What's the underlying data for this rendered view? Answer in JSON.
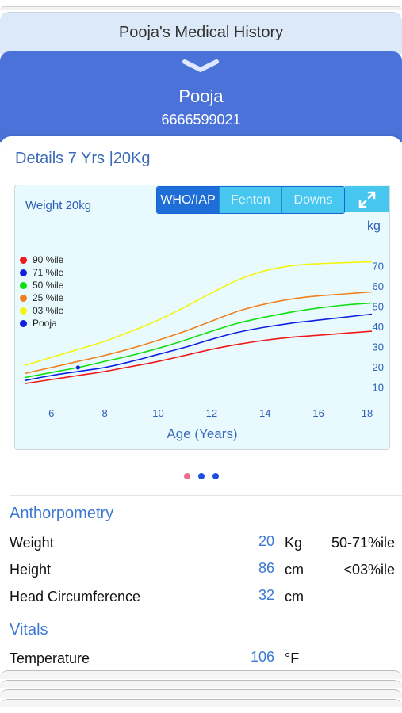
{
  "header": {
    "title": "Pooja's Medical History"
  },
  "patient": {
    "name": "Pooja",
    "phone": "6666599021"
  },
  "details": {
    "text": "Details 7 Yrs  |20Kg"
  },
  "chart": {
    "weight_label": "Weight 20kg",
    "segments": [
      "WHO/IAP",
      "Fenton",
      "Downs"
    ],
    "active_segment": "WHO/IAP",
    "unit": "kg",
    "x_axis_title": "Age (Years)",
    "legend": [
      {
        "label": "90 %ile",
        "color": "#f01818"
      },
      {
        "label": "71 %ile",
        "color": "#1020e0"
      },
      {
        "label": "50 %ile",
        "color": "#10e010"
      },
      {
        "label": "25 %ile",
        "color": "#f08020"
      },
      {
        "label": "03 %ile",
        "color": "#f4f410"
      },
      {
        "label": "Pooja",
        "color": "#1020e0"
      }
    ]
  },
  "chart_data": {
    "type": "line",
    "xlabel": "Age (Years)",
    "ylabel": "kg",
    "title": "Weight 20kg",
    "xlim": [
      5,
      18
    ],
    "ylim": [
      5,
      75
    ],
    "x_ticks": [
      6,
      8,
      10,
      12,
      14,
      16,
      18
    ],
    "y_ticks": [
      10,
      20,
      30,
      40,
      50,
      60,
      70
    ],
    "x": [
      5,
      6,
      7,
      8,
      9,
      10,
      11,
      12,
      13,
      14,
      15,
      16,
      17,
      18
    ],
    "series": [
      {
        "name": "90 %ile",
        "color": "#f01818",
        "values": [
          12,
          14,
          16,
          18,
          20.5,
          23,
          26,
          29,
          31.5,
          33.5,
          35,
          36,
          37,
          38
        ]
      },
      {
        "name": "71 %ile",
        "color": "#1020e0",
        "values": [
          13.5,
          16,
          18,
          20,
          23,
          26.5,
          30,
          34,
          37.5,
          40,
          42,
          43.5,
          45,
          46.5
        ]
      },
      {
        "name": "50 %ile",
        "color": "#10e010",
        "values": [
          15,
          17.5,
          20,
          23,
          26,
          29.5,
          33.5,
          38,
          42,
          45,
          47.5,
          49.5,
          51,
          52
        ]
      },
      {
        "name": "25 %ile",
        "color": "#f08020",
        "values": [
          17,
          20,
          23,
          26,
          29.5,
          33.5,
          38,
          43,
          48,
          51.5,
          54,
          55.5,
          56.5,
          57.5
        ]
      },
      {
        "name": "03 %ile",
        "color": "#f4f410",
        "values": [
          21,
          25,
          29,
          33,
          38,
          43.5,
          50,
          57,
          63.5,
          68,
          70.5,
          71.5,
          72,
          72.5
        ]
      }
    ],
    "points": [
      {
        "name": "Pooja",
        "x": 7,
        "y": 20,
        "color": "#1020e0"
      }
    ],
    "legend_position": "left",
    "grid": false
  },
  "pager": {
    "count": 3,
    "active": 0,
    "active_color": "#ef6f8a",
    "inactive_color": "#1f4fe0"
  },
  "anthropometry": {
    "title": "Anthorpometry",
    "rows": [
      {
        "label": "Weight",
        "value": "20",
        "unit": "Kg",
        "percentile": "50-71%ile"
      },
      {
        "label": "Height",
        "value": "86",
        "unit": "cm",
        "percentile": "<03%ile"
      },
      {
        "label": "Head Circumference",
        "value": "32",
        "unit": "cm",
        "percentile": ""
      }
    ]
  },
  "vitals": {
    "title": "Vitals",
    "rows": [
      {
        "label": "Temperature",
        "value": "106",
        "unit": "°F"
      }
    ]
  },
  "colors": {
    "header_bg": "#dce9f8",
    "patient_bg": "#4a72d8",
    "accent": "#3b78d3",
    "chart_bg": "#e8fafd"
  }
}
